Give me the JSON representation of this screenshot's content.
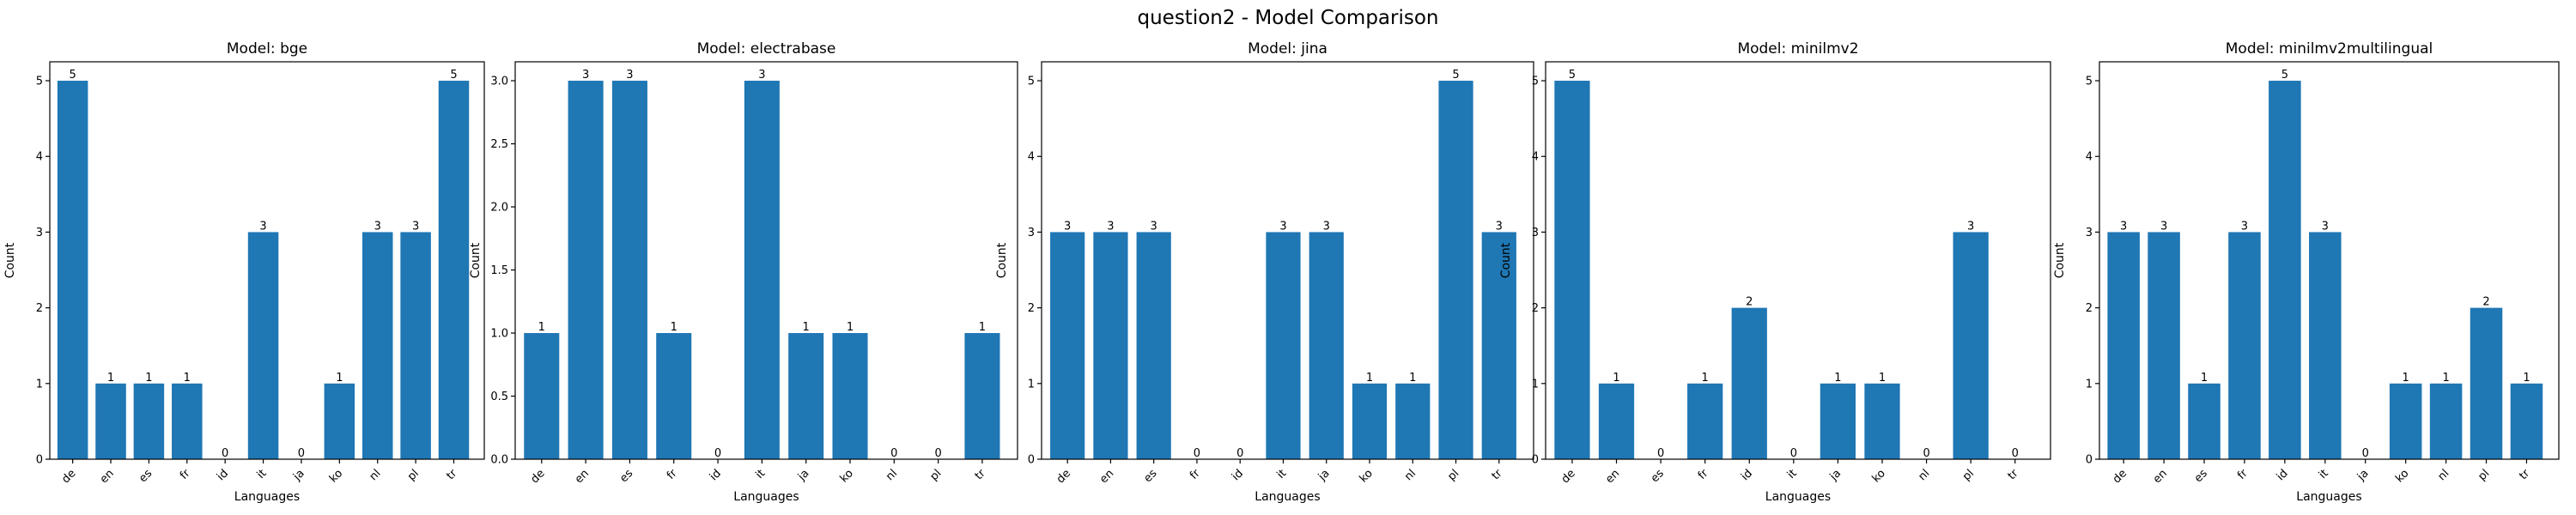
{
  "figure_title": "question2 - Model Comparison",
  "colors": {
    "bar": "#1f77b4",
    "axis": "#000000",
    "background": "#ffffff"
  },
  "chart_data": [
    {
      "type": "bar",
      "title": "Model: bge",
      "xlabel": "Languages",
      "ylabel": "Count",
      "categories": [
        "de",
        "en",
        "es",
        "fr",
        "id",
        "it",
        "ja",
        "ko",
        "nl",
        "pl",
        "tr"
      ],
      "values": [
        5,
        1,
        1,
        1,
        0,
        3,
        0,
        1,
        3,
        3,
        5
      ],
      "ylim": [
        0,
        5.25
      ],
      "yticks": [
        0,
        1,
        2,
        3,
        4,
        5
      ],
      "ytick_labels": [
        "0",
        "1",
        "2",
        "3",
        "4",
        "5"
      ],
      "grid": false
    },
    {
      "type": "bar",
      "title": "Model: electrabase",
      "xlabel": "Languages",
      "ylabel": "Count",
      "categories": [
        "de",
        "en",
        "es",
        "fr",
        "id",
        "it",
        "ja",
        "ko",
        "nl",
        "pl",
        "tr"
      ],
      "values": [
        1,
        3,
        3,
        1,
        0,
        3,
        1,
        1,
        0,
        0,
        1
      ],
      "ylim": [
        0,
        3.15
      ],
      "yticks": [
        0,
        0.5,
        1,
        1.5,
        2,
        2.5,
        3
      ],
      "ytick_labels": [
        "0.0",
        "0.5",
        "1.0",
        "1.5",
        "2.0",
        "2.5",
        "3.0"
      ],
      "grid": false
    },
    {
      "type": "bar",
      "title": "Model: jina",
      "xlabel": "Languages",
      "ylabel": "Count",
      "categories": [
        "de",
        "en",
        "es",
        "fr",
        "id",
        "it",
        "ja",
        "ko",
        "nl",
        "pl",
        "tr"
      ],
      "values": [
        3,
        3,
        3,
        0,
        0,
        3,
        3,
        1,
        1,
        5,
        3
      ],
      "ylim": [
        0,
        5.25
      ],
      "yticks": [
        0,
        1,
        2,
        3,
        4,
        5
      ],
      "ytick_labels": [
        "0",
        "1",
        "2",
        "3",
        "4",
        "5"
      ],
      "grid": false
    },
    {
      "type": "bar",
      "title": "Model: minilmv2",
      "xlabel": "Languages",
      "ylabel": "Count",
      "categories": [
        "de",
        "en",
        "es",
        "fr",
        "id",
        "it",
        "ja",
        "ko",
        "nl",
        "pl",
        "tr"
      ],
      "values": [
        5,
        1,
        0,
        1,
        2,
        0,
        1,
        1,
        0,
        3,
        0
      ],
      "ylim": [
        0,
        5.25
      ],
      "yticks": [
        0,
        1,
        2,
        3,
        4,
        5
      ],
      "ytick_labels": [
        "0",
        "1",
        "2",
        "3",
        "4",
        "5"
      ],
      "grid": false
    },
    {
      "type": "bar",
      "title": "Model: minilmv2multilingual",
      "xlabel": "Languages",
      "ylabel": "Count",
      "categories": [
        "de",
        "en",
        "es",
        "fr",
        "id",
        "it",
        "ja",
        "ko",
        "nl",
        "pl",
        "tr"
      ],
      "values": [
        3,
        3,
        1,
        3,
        5,
        3,
        0,
        1,
        1,
        2,
        1
      ],
      "ylim": [
        0,
        5.25
      ],
      "yticks": [
        0,
        1,
        2,
        3,
        4,
        5
      ],
      "ytick_labels": [
        "0",
        "1",
        "2",
        "3",
        "4",
        "5"
      ],
      "grid": false
    }
  ]
}
